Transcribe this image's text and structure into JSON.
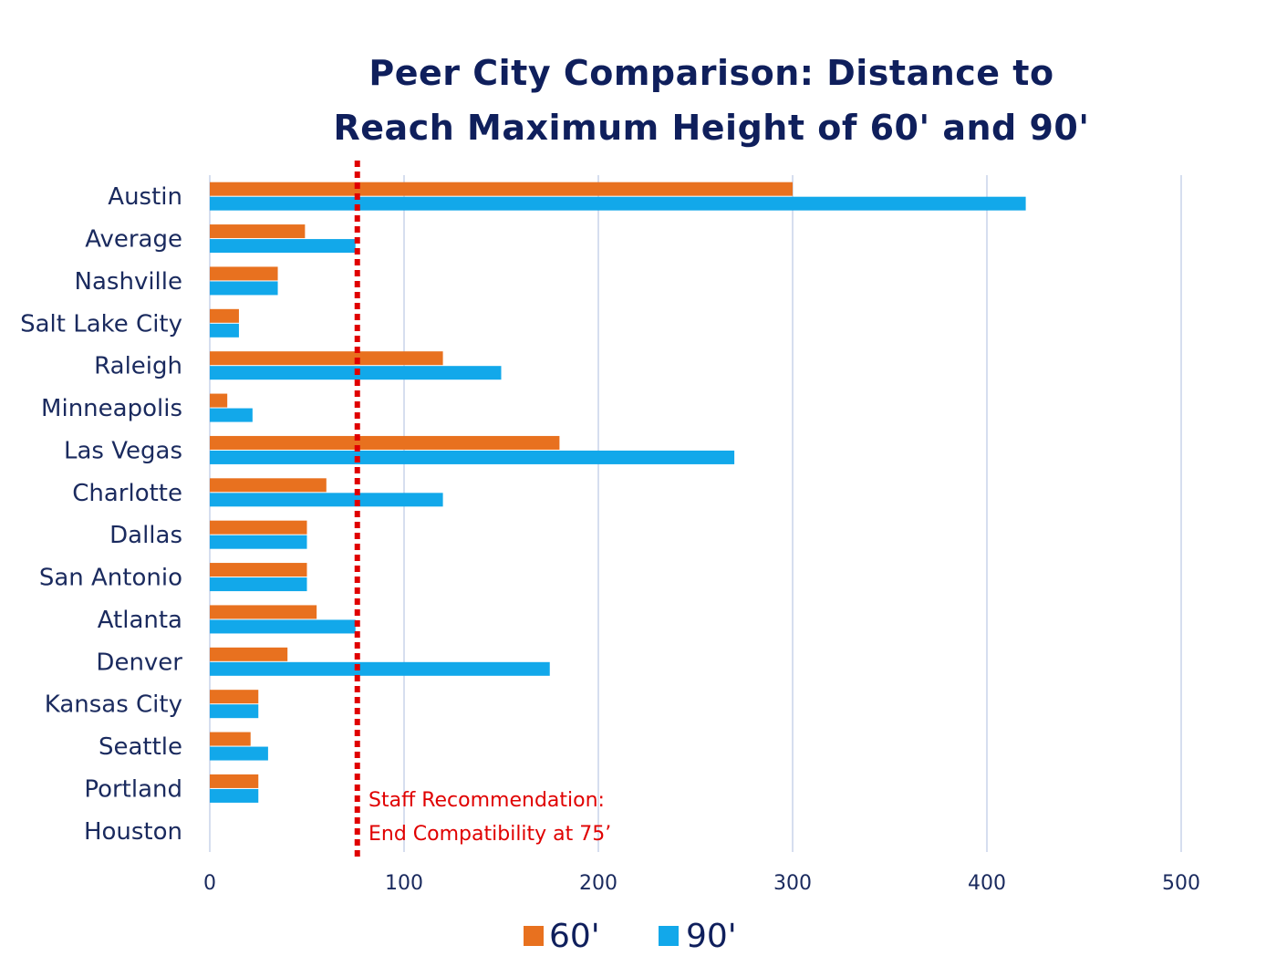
{
  "chart_data": {
    "type": "bar",
    "orientation": "horizontal",
    "title_line1": "Peer City Comparison: Distance to",
    "title_line2": "Reach Maximum Height of 60' and 90'",
    "categories": [
      "Austin",
      "Average",
      "Nashville",
      "Salt Lake City",
      "Raleigh",
      "Minneapolis",
      "Las Vegas",
      "Charlotte",
      "Dallas",
      "San Antonio",
      "Atlanta",
      "Denver",
      "Kansas City",
      "Seattle",
      "Portland",
      "Houston"
    ],
    "series": [
      {
        "name": "60'",
        "color": "#e8711f",
        "values": [
          300,
          49,
          35,
          15,
          120,
          9,
          180,
          60,
          50,
          50,
          55,
          40,
          25,
          21,
          25,
          0
        ]
      },
      {
        "name": "90'",
        "color": "#12a8ea",
        "values": [
          420,
          75,
          35,
          15,
          150,
          22,
          270,
          120,
          50,
          50,
          75,
          175,
          25,
          30,
          25,
          0
        ]
      }
    ],
    "xlim": [
      0,
      500
    ],
    "x_ticks": [
      0,
      100,
      200,
      300,
      400,
      500
    ],
    "grid": true,
    "legend_position": "bottom",
    "reference_line": {
      "value": 75,
      "color": "#e00000",
      "style": "dotted",
      "label_line1": "Staff Recommendation:",
      "label_line2": "End Compatibility at 75’"
    }
  }
}
